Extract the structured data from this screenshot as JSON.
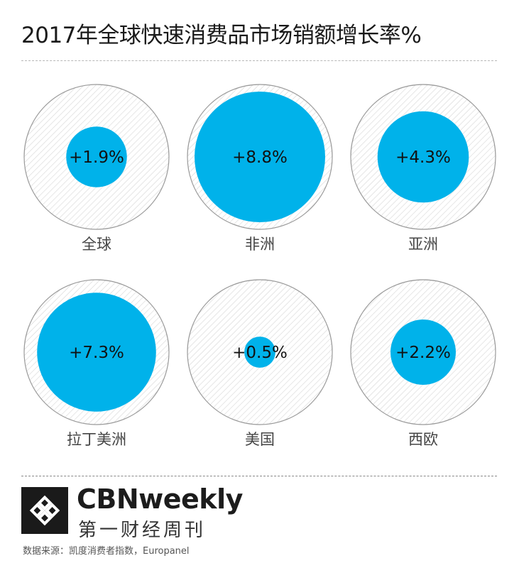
{
  "title": "2017年全球快速消费品市场销额增长率%",
  "chart_data": {
    "type": "proportional-circles",
    "title": "2017年全球快速消费品市场销额增长率%",
    "items": [
      {
        "region": "全球",
        "value": 1.9,
        "label": "+1.9%"
      },
      {
        "region": "非洲",
        "value": 8.8,
        "label": "+8.8%"
      },
      {
        "region": "亚洲",
        "value": 4.3,
        "label": "+4.3%"
      },
      {
        "region": "拉丁美洲",
        "value": 7.3,
        "label": "+7.3%"
      },
      {
        "region": "美国",
        "value": 0.5,
        "label": "+0.5%"
      },
      {
        "region": "西欧",
        "value": 2.2,
        "label": "+2.2%"
      }
    ],
    "colors": {
      "fill": "#00b2ea",
      "outline": "#9a9a9a",
      "hatch": "#d6d6d6"
    }
  },
  "brand": {
    "en": "CBNweekly",
    "cn": "第一财经周刊"
  },
  "source": "数据来源：凯度消费者指数，Europanel"
}
